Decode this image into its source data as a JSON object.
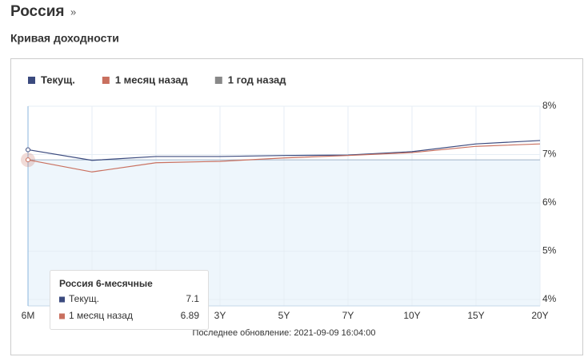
{
  "header": {
    "title": "Россия",
    "arrow": "»",
    "section": "Кривая доходности"
  },
  "chart_data": {
    "type": "line",
    "categories": [
      "6M",
      null,
      null,
      "3Y",
      "5Y",
      "7Y",
      "10Y",
      "15Y",
      "20Y"
    ],
    "series": [
      {
        "name": "Текущ.",
        "color": "#3b4a7e",
        "values": [
          7.1,
          6.88,
          6.96,
          6.96,
          6.98,
          6.99,
          7.06,
          7.22,
          7.29
        ]
      },
      {
        "name": "1 месяц назад",
        "color": "#c9705f",
        "values": [
          6.89,
          6.64,
          6.83,
          6.86,
          6.93,
          6.98,
          7.04,
          7.17,
          7.22
        ]
      },
      {
        "name": "1 год назад",
        "color": "#888888",
        "values": [
          null,
          null,
          null,
          null,
          null,
          null,
          null,
          null,
          null
        ]
      }
    ],
    "ylim": [
      4,
      8
    ],
    "yticks": [
      {
        "value": 4,
        "label": "4%"
      },
      {
        "value": 5,
        "label": "5%"
      },
      {
        "value": 6,
        "label": "6%"
      },
      {
        "value": 7,
        "label": "7%"
      },
      {
        "value": 8,
        "label": "8%"
      }
    ],
    "grid": true,
    "tooltip_title": "Россия 6-месячные",
    "footer": "Последнее обновление: 2021-09-09 16:04:00"
  }
}
